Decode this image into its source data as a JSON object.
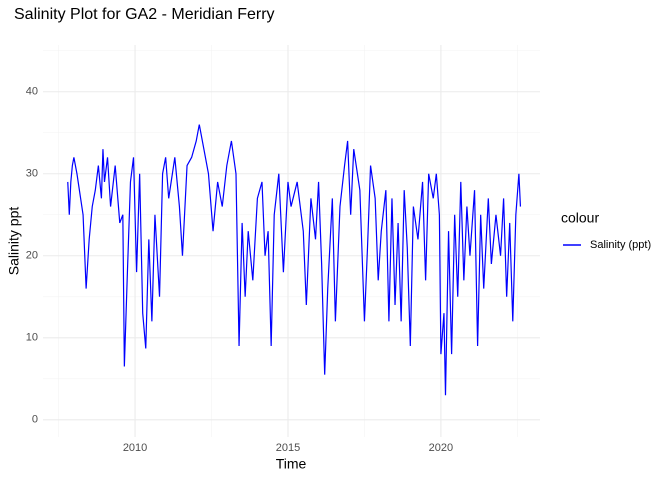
{
  "chart_data": {
    "type": "line",
    "title": "Salinity Plot for GA2 - Meridian Ferry",
    "x_label": "Time",
    "y_label": "Salinity ppt",
    "legend_title": "colour",
    "grid": true,
    "xlim": [
      2006.99,
      2023.24
    ],
    "xticks": [
      2010,
      2015,
      2020
    ],
    "ylim": [
      -2.1,
      45.7
    ],
    "yticks": [
      0,
      10,
      20,
      30,
      40
    ],
    "x": [
      2007.8,
      2007.85,
      2007.9,
      2007.95,
      2008.0,
      2008.1,
      2008.3,
      2008.4,
      2008.5,
      2008.6,
      2008.7,
      2008.8,
      2008.9,
      2008.95,
      2009.0,
      2009.1,
      2009.2,
      2009.35,
      2009.5,
      2009.6,
      2009.65,
      2009.75,
      2009.85,
      2009.95,
      2010.05,
      2010.15,
      2010.25,
      2010.35,
      2010.45,
      2010.55,
      2010.65,
      2010.8,
      2010.9,
      2011.0,
      2011.1,
      2011.3,
      2011.45,
      2011.55,
      2011.7,
      2011.85,
      2012.0,
      2012.1,
      2012.25,
      2012.4,
      2012.55,
      2012.7,
      2012.85,
      2013.0,
      2013.15,
      2013.3,
      2013.4,
      2013.5,
      2013.6,
      2013.7,
      2013.85,
      2014.0,
      2014.15,
      2014.25,
      2014.35,
      2014.45,
      2014.55,
      2014.7,
      2014.85,
      2015.0,
      2015.1,
      2015.3,
      2015.5,
      2015.6,
      2015.75,
      2015.9,
      2016.0,
      2016.1,
      2016.2,
      2016.3,
      2016.45,
      2016.55,
      2016.7,
      2016.85,
      2016.95,
      2017.05,
      2017.15,
      2017.35,
      2017.5,
      2017.6,
      2017.7,
      2017.85,
      2017.95,
      2018.05,
      2018.2,
      2018.3,
      2018.4,
      2018.5,
      2018.6,
      2018.7,
      2018.8,
      2018.9,
      2019.0,
      2019.1,
      2019.25,
      2019.4,
      2019.5,
      2019.6,
      2019.75,
      2019.85,
      2019.95,
      2020.0,
      2020.1,
      2020.15,
      2020.25,
      2020.35,
      2020.45,
      2020.55,
      2020.65,
      2020.75,
      2020.85,
      2020.95,
      2021.1,
      2021.2,
      2021.3,
      2021.4,
      2021.55,
      2021.65,
      2021.8,
      2021.95,
      2022.05,
      2022.15,
      2022.25,
      2022.35,
      2022.45,
      2022.55,
      2022.6
    ],
    "series": [
      {
        "name": "Salinity (ppt)",
        "color": "#0000ff",
        "values": [
          29,
          25,
          29,
          31,
          32,
          30,
          25,
          16,
          22,
          26,
          28,
          31,
          27,
          33,
          29,
          32,
          26,
          31,
          24,
          25,
          6.5,
          18,
          29,
          32,
          18,
          30,
          13,
          8.7,
          22,
          12,
          25,
          15,
          30,
          32,
          27,
          32,
          26,
          20,
          31,
          32,
          34,
          36,
          33,
          30,
          23,
          29,
          26,
          31,
          34,
          30,
          9,
          24,
          15,
          23,
          17,
          27,
          29,
          20,
          23,
          9,
          25,
          30,
          18,
          29,
          26,
          29,
          23,
          14,
          27,
          22,
          29,
          19,
          5.5,
          16,
          27,
          12,
          26,
          31,
          34,
          25,
          33,
          28,
          12,
          21,
          31,
          27,
          17,
          23,
          28,
          12,
          27,
          14,
          24,
          12,
          28,
          21,
          9,
          26,
          22,
          29,
          17,
          30,
          27,
          30,
          25,
          8,
          13,
          3,
          23,
          8,
          25,
          15,
          29,
          17,
          26,
          20,
          28,
          9,
          25,
          16,
          27,
          19,
          25,
          20,
          27,
          15,
          24,
          12,
          25,
          30,
          26
        ]
      }
    ]
  }
}
